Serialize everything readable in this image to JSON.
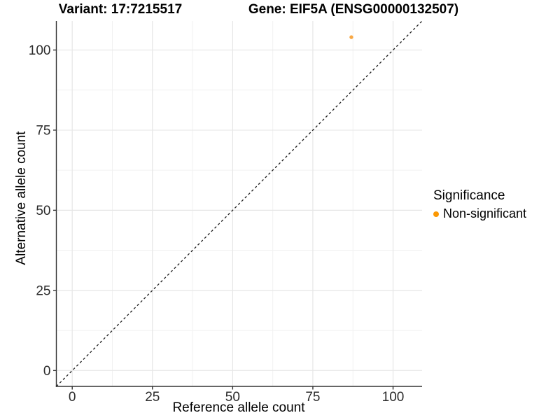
{
  "titles": {
    "left": "Variant: 17:7215517",
    "right": "Gene: EIF5A (ENSG00000132507)"
  },
  "axes": {
    "x_label": "Reference allele count",
    "y_label": "Alternative allele count"
  },
  "legend": {
    "title": "Significance",
    "items": [
      {
        "label": "Non-significant",
        "color": "#FB9803"
      }
    ]
  },
  "colors": {
    "point": "#F8A845",
    "legend_point": "#FB9803",
    "grid_major": "#E6E6E6",
    "grid_minor": "#F1F1F1",
    "axis_line": "#333333",
    "tick_mark": "#333333",
    "tick_text": "#2b2b2b",
    "reference_line": "#1a1a1a"
  },
  "chart_data": {
    "type": "scatter",
    "title": "Variant: 17:7215517 — Gene: EIF5A (ENSG00000132507)",
    "xlabel": "Reference allele count",
    "ylabel": "Alternative allele count",
    "xlim": [
      -4.95,
      109.05
    ],
    "ylim": [
      -4.95,
      109.05
    ],
    "x_ticks": [
      0,
      25,
      50,
      75,
      100
    ],
    "y_ticks": [
      0,
      25,
      50,
      75,
      100
    ],
    "x_minor_ticks": [
      12.5,
      37.5,
      62.5,
      87.5
    ],
    "y_minor_ticks": [
      12.5,
      37.5,
      62.5,
      87.5
    ],
    "grid": "major+minor",
    "legend_position": "right",
    "series": [
      {
        "name": "Non-significant",
        "points": [
          {
            "x": 87,
            "y": 104
          }
        ]
      }
    ],
    "reference_line": {
      "kind": "identity",
      "equation": "y = x",
      "style": "dashed"
    }
  }
}
